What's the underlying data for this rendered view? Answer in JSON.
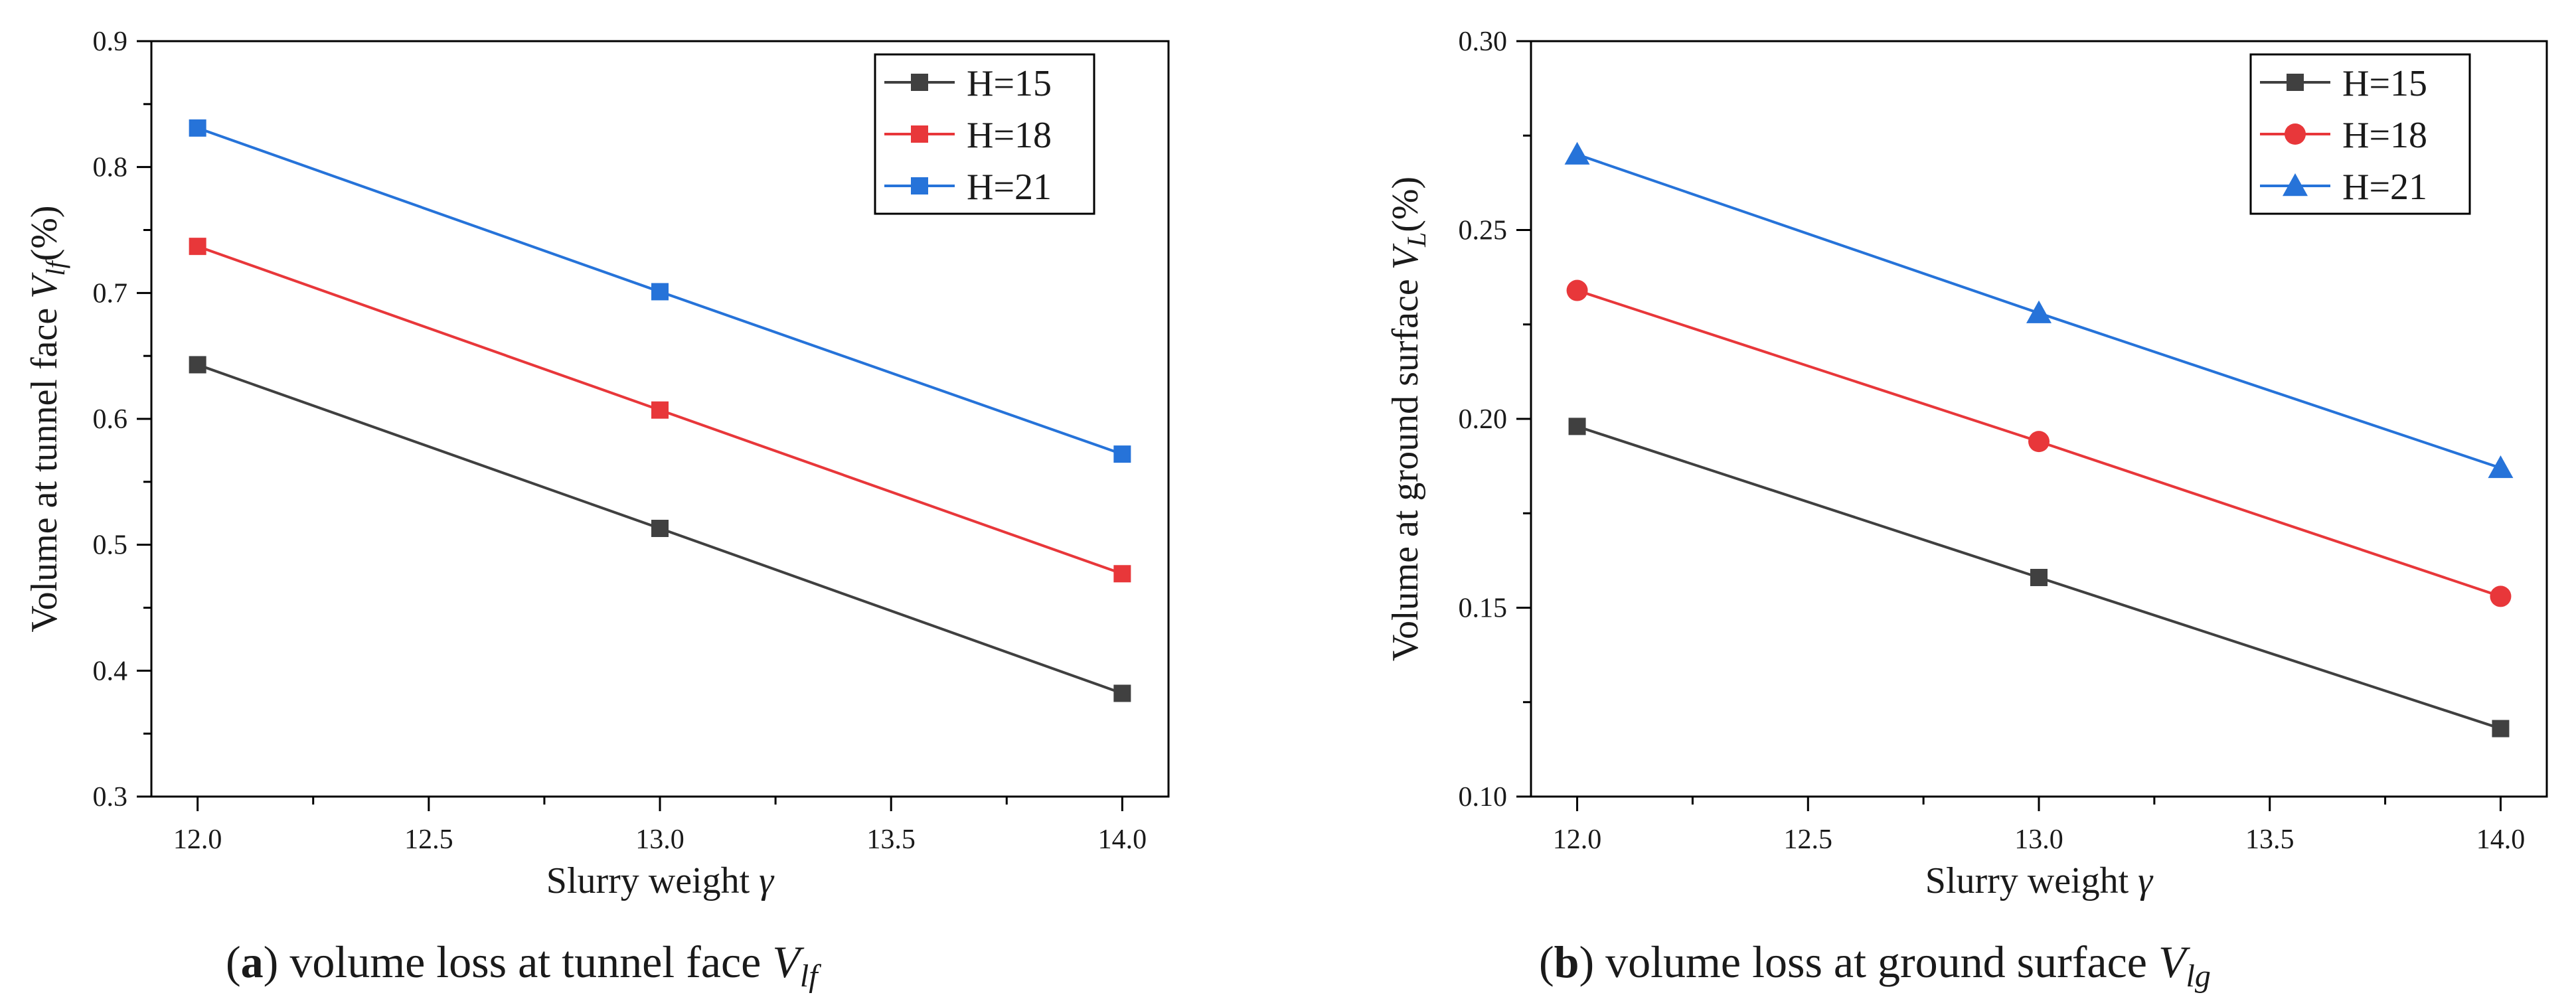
{
  "colors": {
    "H15": "#404040",
    "H18": "#e8373a",
    "H21": "#2673d9"
  },
  "chart_data": [
    {
      "type": "line",
      "panel_label": "a",
      "caption": " volume loss at tunnel face ",
      "caption_var": "V",
      "caption_sub": "lf",
      "xlabel": "Slurry weight ",
      "xlabel_symbol": "γ",
      "ylabel_prefix": "Volume at tunnel face ",
      "ylabel_var": "V",
      "ylabel_sub": "lf",
      "ylabel_suffix": "(%)",
      "x": [
        12.0,
        13.0,
        14.0
      ],
      "xlim": [
        11.9,
        14.1
      ],
      "ylim": [
        0.3,
        0.9
      ],
      "xticks": [
        "12.0",
        "12.5",
        "13.0",
        "13.5",
        "14.0"
      ],
      "xtick_values": [
        12.0,
        12.5,
        13.0,
        13.5,
        14.0
      ],
      "yticks": [
        "0.3",
        "0.4",
        "0.5",
        "0.6",
        "0.7",
        "0.8",
        "0.9"
      ],
      "ytick_values": [
        0.3,
        0.4,
        0.5,
        0.6,
        0.7,
        0.8,
        0.9
      ],
      "legend_position": "top-right",
      "series": [
        {
          "name": "H=15",
          "color_key": "H15",
          "marker": "square",
          "values": [
            0.643,
            0.513,
            0.382
          ]
        },
        {
          "name": "H=18",
          "color_key": "H18",
          "marker": "square",
          "values": [
            0.737,
            0.607,
            0.477
          ]
        },
        {
          "name": "H=21",
          "color_key": "H21",
          "marker": "square",
          "values": [
            0.831,
            0.701,
            0.572
          ]
        }
      ]
    },
    {
      "type": "line",
      "panel_label": "b",
      "caption": " volume loss at ground surface ",
      "caption_var": "V",
      "caption_sub": "lg",
      "xlabel": "Slurry weight ",
      "xlabel_symbol": "γ",
      "ylabel_prefix": "Volume at ground surface ",
      "ylabel_var": "V",
      "ylabel_sub": "L",
      "ylabel_suffix": "(%)",
      "x": [
        12.0,
        13.0,
        14.0
      ],
      "xlim": [
        11.9,
        14.1
      ],
      "ylim": [
        0.1,
        0.3
      ],
      "xticks": [
        "12.0",
        "12.5",
        "13.0",
        "13.5",
        "14.0"
      ],
      "xtick_values": [
        12.0,
        12.5,
        13.0,
        13.5,
        14.0
      ],
      "yticks": [
        "0.10",
        "0.15",
        "0.20",
        "0.25",
        "0.30"
      ],
      "ytick_values": [
        0.1,
        0.15,
        0.2,
        0.25,
        0.3
      ],
      "legend_position": "top-right",
      "series": [
        {
          "name": "H=15",
          "color_key": "H15",
          "marker": "square",
          "values": [
            0.198,
            0.158,
            0.118
          ]
        },
        {
          "name": "H=18",
          "color_key": "H18",
          "marker": "circle",
          "values": [
            0.234,
            0.194,
            0.153
          ]
        },
        {
          "name": "H=21",
          "color_key": "H21",
          "marker": "triangle",
          "values": [
            0.27,
            0.228,
            0.187
          ]
        }
      ]
    }
  ]
}
